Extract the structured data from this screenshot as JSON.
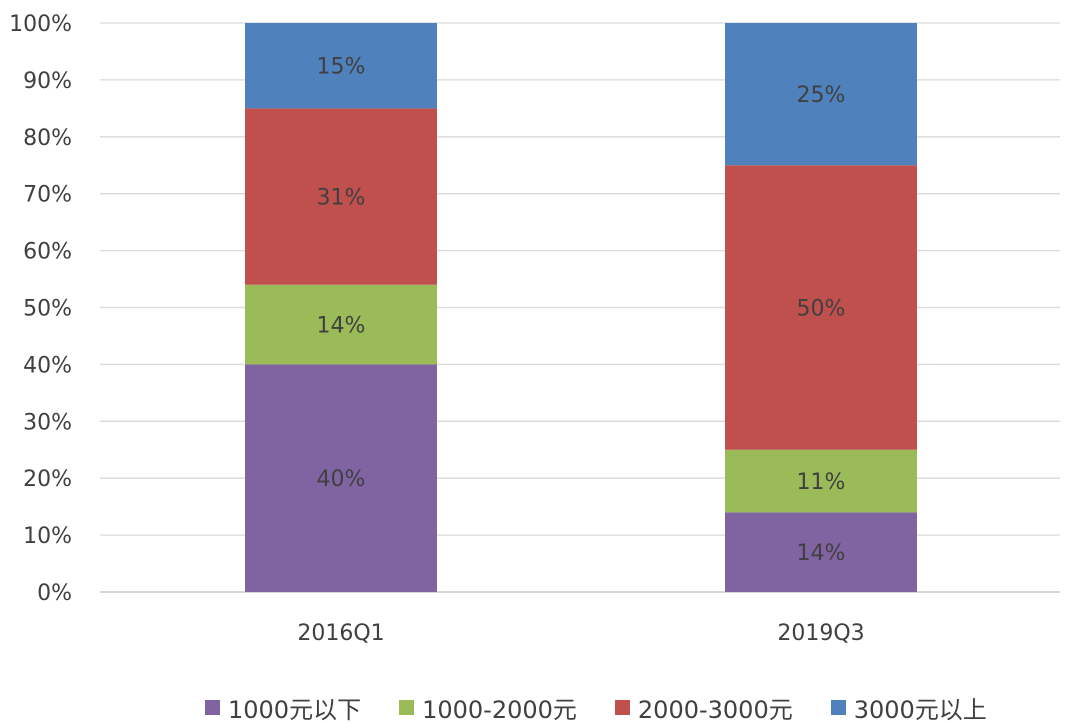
{
  "chart_data": {
    "type": "bar",
    "stacked": true,
    "categories": [
      "2016Q1",
      "2019Q3"
    ],
    "series": [
      {
        "name": "1000元以下",
        "values": [
          40,
          14
        ],
        "labels": [
          "40%",
          "14%"
        ],
        "color": "#8064a2"
      },
      {
        "name": "1000-2000元",
        "values": [
          14,
          11
        ],
        "labels": [
          "14%",
          "11%"
        ],
        "color": "#9bbb59"
      },
      {
        "name": "2000-3000元",
        "values": [
          31,
          50
        ],
        "labels": [
          "31%",
          "50%"
        ],
        "color": "#c0504d"
      },
      {
        "name": "3000元以上",
        "values": [
          15,
          25
        ],
        "labels": [
          "15%",
          "25%"
        ],
        "color": "#4f81bd"
      }
    ],
    "ylim": [
      0,
      100
    ],
    "yticks": [
      "0%",
      "10%",
      "20%",
      "30%",
      "40%",
      "50%",
      "60%",
      "70%",
      "80%",
      "90%",
      "100%"
    ],
    "grid": true,
    "legend": "bottom"
  }
}
